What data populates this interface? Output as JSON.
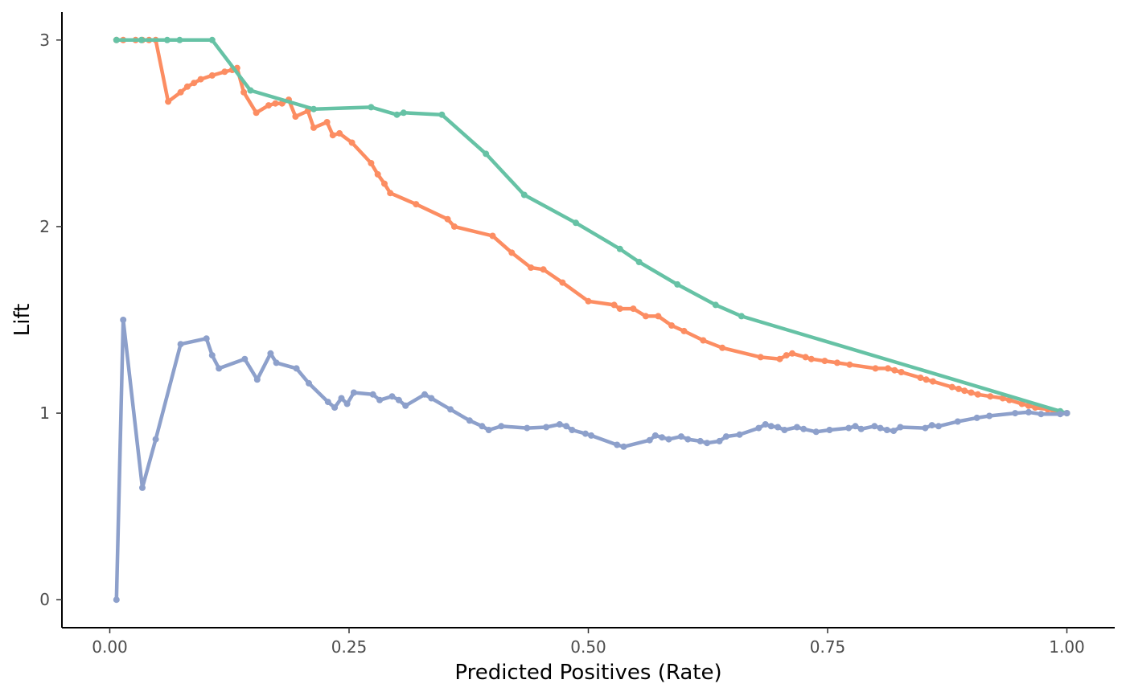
{
  "chart_data": {
    "type": "line",
    "title": "",
    "xlabel": "Predicted Positives (Rate)",
    "ylabel": "Lift",
    "xlim": [
      -0.05,
      1.05
    ],
    "ylim": [
      -0.15,
      3.15
    ],
    "x_ticks": [
      0,
      0.25,
      0.5,
      0.75,
      1
    ],
    "x_tick_labels": [
      "0.00",
      "0.25",
      "0.50",
      "0.75",
      "1.00"
    ],
    "y_ticks": [
      0,
      1,
      2,
      3
    ],
    "y_tick_labels": [
      "0",
      "1",
      "2",
      "3"
    ],
    "grid": false,
    "legend": "none",
    "series": [
      {
        "color": "#fc8d62",
        "points": [
          [
            0.007,
            3.0
          ],
          [
            0.014,
            3.0
          ],
          [
            0.027,
            3.0
          ],
          [
            0.034,
            3.0
          ],
          [
            0.041,
            3.0
          ],
          [
            0.048,
            3.0
          ],
          [
            0.061,
            2.67
          ],
          [
            0.074,
            2.72
          ],
          [
            0.081,
            2.75
          ],
          [
            0.088,
            2.77
          ],
          [
            0.095,
            2.79
          ],
          [
            0.107,
            2.81
          ],
          [
            0.12,
            2.83
          ],
          [
            0.128,
            2.84
          ],
          [
            0.133,
            2.85
          ],
          [
            0.14,
            2.72
          ],
          [
            0.153,
            2.61
          ],
          [
            0.166,
            2.65
          ],
          [
            0.173,
            2.66
          ],
          [
            0.18,
            2.66
          ],
          [
            0.187,
            2.68
          ],
          [
            0.194,
            2.59
          ],
          [
            0.207,
            2.62
          ],
          [
            0.213,
            2.53
          ],
          [
            0.227,
            2.56
          ],
          [
            0.233,
            2.49
          ],
          [
            0.24,
            2.5
          ],
          [
            0.253,
            2.45
          ],
          [
            0.273,
            2.34
          ],
          [
            0.28,
            2.28
          ],
          [
            0.287,
            2.23
          ],
          [
            0.293,
            2.18
          ],
          [
            0.32,
            2.12
          ],
          [
            0.353,
            2.04
          ],
          [
            0.36,
            2.0
          ],
          [
            0.4,
            1.95
          ],
          [
            0.42,
            1.86
          ],
          [
            0.44,
            1.78
          ],
          [
            0.453,
            1.77
          ],
          [
            0.473,
            1.7
          ],
          [
            0.5,
            1.6
          ],
          [
            0.527,
            1.58
          ],
          [
            0.533,
            1.56
          ],
          [
            0.547,
            1.56
          ],
          [
            0.56,
            1.52
          ],
          [
            0.573,
            1.52
          ],
          [
            0.587,
            1.47
          ],
          [
            0.6,
            1.44
          ],
          [
            0.62,
            1.39
          ],
          [
            0.64,
            1.35
          ],
          [
            0.68,
            1.3
          ],
          [
            0.7,
            1.29
          ],
          [
            0.707,
            1.31
          ],
          [
            0.713,
            1.32
          ],
          [
            0.727,
            1.3
          ],
          [
            0.733,
            1.29
          ],
          [
            0.747,
            1.28
          ],
          [
            0.76,
            1.27
          ],
          [
            0.773,
            1.26
          ],
          [
            0.8,
            1.24
          ],
          [
            0.813,
            1.24
          ],
          [
            0.82,
            1.23
          ],
          [
            0.827,
            1.22
          ],
          [
            0.847,
            1.19
          ],
          [
            0.853,
            1.18
          ],
          [
            0.86,
            1.17
          ],
          [
            0.88,
            1.14
          ],
          [
            0.887,
            1.13
          ],
          [
            0.893,
            1.12
          ],
          [
            0.9,
            1.11
          ],
          [
            0.907,
            1.1
          ],
          [
            0.92,
            1.09
          ],
          [
            0.933,
            1.08
          ],
          [
            0.94,
            1.07
          ],
          [
            0.953,
            1.05
          ],
          [
            0.96,
            1.04
          ],
          [
            0.967,
            1.03
          ],
          [
            0.98,
            1.02
          ],
          [
            0.987,
            1.01
          ],
          [
            1.0,
            1.0
          ]
        ]
      },
      {
        "color": "#66c2a5",
        "points": [
          [
            0.007,
            3.0
          ],
          [
            0.033,
            3.0
          ],
          [
            0.06,
            3.0
          ],
          [
            0.073,
            3.0
          ],
          [
            0.107,
            3.0
          ],
          [
            0.147,
            2.73
          ],
          [
            0.213,
            2.63
          ],
          [
            0.273,
            2.64
          ],
          [
            0.3,
            2.6
          ],
          [
            0.307,
            2.61
          ],
          [
            0.347,
            2.6
          ],
          [
            0.393,
            2.39
          ],
          [
            0.433,
            2.17
          ],
          [
            0.487,
            2.02
          ],
          [
            0.533,
            1.88
          ],
          [
            0.553,
            1.81
          ],
          [
            0.593,
            1.69
          ],
          [
            0.633,
            1.58
          ],
          [
            0.66,
            1.52
          ],
          [
            0.993,
            1.01
          ],
          [
            1.0,
            1.0
          ]
        ]
      },
      {
        "color": "#8da0cb",
        "points": [
          [
            0.007,
            0.0
          ],
          [
            0.014,
            1.5
          ],
          [
            0.034,
            0.6
          ],
          [
            0.048,
            0.86
          ],
          [
            0.074,
            1.37
          ],
          [
            0.101,
            1.4
          ],
          [
            0.107,
            1.31
          ],
          [
            0.114,
            1.24
          ],
          [
            0.141,
            1.29
          ],
          [
            0.154,
            1.18
          ],
          [
            0.168,
            1.32
          ],
          [
            0.174,
            1.27
          ],
          [
            0.195,
            1.24
          ],
          [
            0.208,
            1.16
          ],
          [
            0.228,
            1.06
          ],
          [
            0.235,
            1.03
          ],
          [
            0.242,
            1.08
          ],
          [
            0.248,
            1.05
          ],
          [
            0.255,
            1.11
          ],
          [
            0.275,
            1.1
          ],
          [
            0.282,
            1.07
          ],
          [
            0.295,
            1.09
          ],
          [
            0.302,
            1.07
          ],
          [
            0.309,
            1.04
          ],
          [
            0.329,
            1.1
          ],
          [
            0.336,
            1.08
          ],
          [
            0.356,
            1.02
          ],
          [
            0.376,
            0.96
          ],
          [
            0.389,
            0.93
          ],
          [
            0.396,
            0.91
          ],
          [
            0.409,
            0.93
          ],
          [
            0.436,
            0.92
          ],
          [
            0.456,
            0.925
          ],
          [
            0.47,
            0.94
          ],
          [
            0.477,
            0.93
          ],
          [
            0.483,
            0.91
          ],
          [
            0.497,
            0.89
          ],
          [
            0.503,
            0.88
          ],
          [
            0.53,
            0.83
          ],
          [
            0.537,
            0.82
          ],
          [
            0.564,
            0.855
          ],
          [
            0.57,
            0.88
          ],
          [
            0.577,
            0.87
          ],
          [
            0.584,
            0.86
          ],
          [
            0.597,
            0.875
          ],
          [
            0.604,
            0.86
          ],
          [
            0.617,
            0.85
          ],
          [
            0.624,
            0.84
          ],
          [
            0.637,
            0.85
          ],
          [
            0.644,
            0.875
          ],
          [
            0.658,
            0.885
          ],
          [
            0.678,
            0.92
          ],
          [
            0.685,
            0.94
          ],
          [
            0.691,
            0.93
          ],
          [
            0.698,
            0.925
          ],
          [
            0.705,
            0.91
          ],
          [
            0.718,
            0.925
          ],
          [
            0.725,
            0.915
          ],
          [
            0.738,
            0.9
          ],
          [
            0.752,
            0.91
          ],
          [
            0.772,
            0.92
          ],
          [
            0.779,
            0.93
          ],
          [
            0.785,
            0.915
          ],
          [
            0.799,
            0.93
          ],
          [
            0.805,
            0.92
          ],
          [
            0.812,
            0.91
          ],
          [
            0.819,
            0.905
          ],
          [
            0.826,
            0.925
          ],
          [
            0.852,
            0.92
          ],
          [
            0.859,
            0.935
          ],
          [
            0.866,
            0.93
          ],
          [
            0.886,
            0.955
          ],
          [
            0.906,
            0.975
          ],
          [
            0.919,
            0.985
          ],
          [
            0.946,
            1.0
          ],
          [
            0.96,
            1.005
          ],
          [
            0.973,
            0.995
          ],
          [
            0.993,
            0.995
          ],
          [
            1.0,
            1.0
          ]
        ]
      }
    ]
  }
}
